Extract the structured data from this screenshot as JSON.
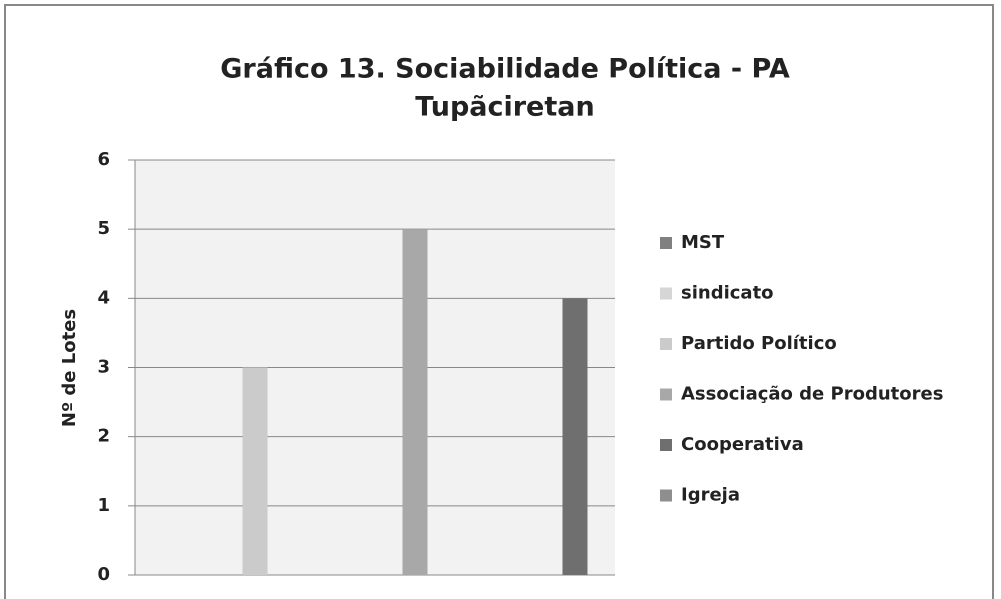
{
  "chart_data": {
    "type": "bar",
    "title": [
      "Gráfico 13. Sociabilidade Política - PA",
      "Tupãciretan"
    ],
    "y_label": "Nº de Lotes",
    "categories": [
      null,
      null,
      null
    ],
    "series": [
      {
        "name": "MST",
        "color": "#808080",
        "values": [
          null,
          null,
          null
        ]
      },
      {
        "name": "sindicato",
        "color": "#d6d6d6",
        "values": [
          null,
          null,
          null
        ]
      },
      {
        "name": "Partido Político",
        "color": "#cbcbcb",
        "values": [
          3,
          null,
          null
        ]
      },
      {
        "name": "Associação de Produtores",
        "color": "#a8a8a8",
        "values": [
          null,
          5,
          null
        ]
      },
      {
        "name": "Cooperativa",
        "color": "#6f6f6f",
        "values": [
          null,
          null,
          4
        ]
      },
      {
        "name": "Igreja",
        "color": "#8e8e8e",
        "values": [
          null,
          null,
          null
        ]
      }
    ],
    "ylim": [
      0,
      6
    ],
    "yticks": [
      0,
      1,
      2,
      3,
      4,
      5,
      6
    ],
    "grid": true,
    "legend": "right"
  }
}
